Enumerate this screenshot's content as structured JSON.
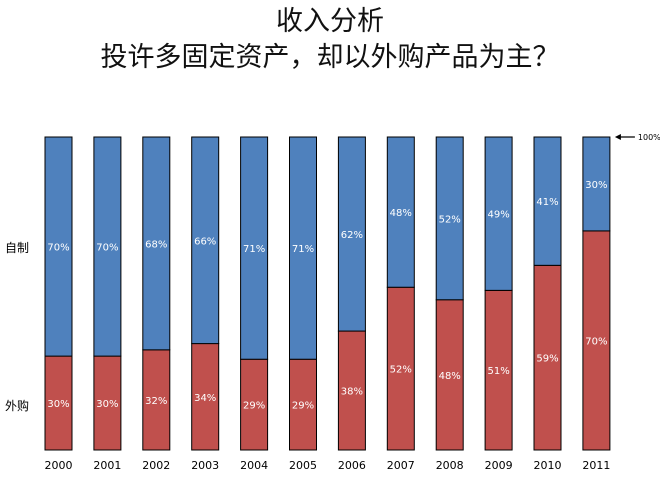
{
  "title_line1": "收入分析",
  "title_line2": "投许多固定资产，却以外购产品为主？",
  "labels": {
    "self_made": "自制",
    "outsourced": "外购",
    "ref_100": "100%"
  },
  "colors": {
    "self_made": "#4f81bd",
    "outsourced": "#c0504d",
    "border": "#000000",
    "label_text": "#ffffff"
  },
  "chart_data": {
    "type": "bar",
    "stacked": true,
    "percent": true,
    "ylim": [
      0,
      100
    ],
    "categories": [
      "2000",
      "2001",
      "2002",
      "2003",
      "2004",
      "2005",
      "2006",
      "2007",
      "2008",
      "2009",
      "2010",
      "2011"
    ],
    "series": [
      {
        "name": "外购",
        "values": [
          30,
          30,
          32,
          34,
          29,
          29,
          38,
          52,
          48,
          51,
          59,
          70
        ]
      },
      {
        "name": "自制",
        "values": [
          70,
          70,
          68,
          66,
          71,
          71,
          62,
          48,
          52,
          49,
          41,
          30
        ]
      }
    ],
    "annotations": [
      "100%"
    ]
  }
}
